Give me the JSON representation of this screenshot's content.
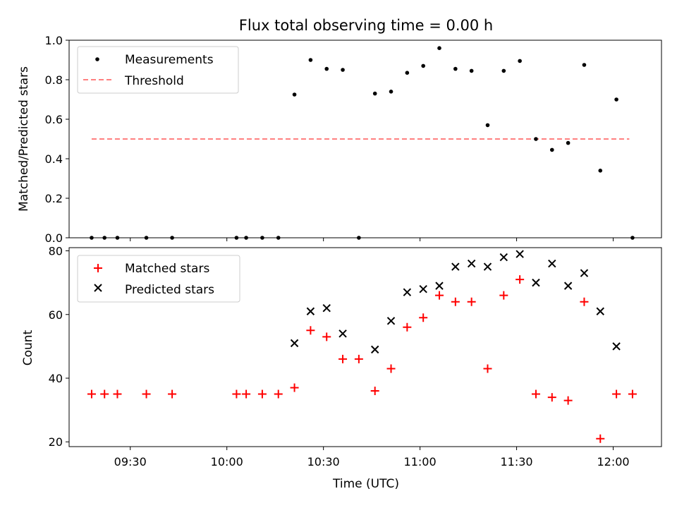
{
  "chart_data": [
    {
      "type": "scatter",
      "title": "Flux total observing time = 0.00 h",
      "ylabel": "Matched/Predicted stars",
      "ylim": [
        0,
        1.0
      ],
      "yticks": [
        "0.0",
        "0.2",
        "0.4",
        "0.6",
        "0.8",
        "1.0"
      ],
      "xlim": [
        "09:11",
        "12:15"
      ],
      "legend_position": "upper-left",
      "series": [
        {
          "name": "Measurements",
          "color": "#000000",
          "marker": "dot",
          "x": [
            "09:18",
            "09:22",
            "09:26",
            "09:35",
            "09:43",
            "10:03",
            "10:06",
            "10:11",
            "10:16",
            "10:21",
            "10:26",
            "10:31",
            "10:36",
            "10:41",
            "10:46",
            "10:51",
            "10:56",
            "11:01",
            "11:06",
            "11:11",
            "11:16",
            "11:21",
            "11:26",
            "11:31",
            "11:36",
            "11:41",
            "11:46",
            "11:51",
            "11:56",
            "12:01",
            "12:06"
          ],
          "y": [
            0,
            0,
            0,
            0,
            0,
            0,
            0,
            0,
            0,
            0.725,
            0.9,
            0.855,
            0.85,
            0,
            0.73,
            0.74,
            0.835,
            0.87,
            0.96,
            0.855,
            0.845,
            0.57,
            0.845,
            0.895,
            0.5,
            0.445,
            0.48,
            0.875,
            0.34,
            0.7,
            0
          ]
        }
      ],
      "threshold": {
        "name": "Threshold",
        "color": "#ff8080",
        "value": 0.5,
        "x": [
          "09:18",
          "12:05"
        ]
      }
    },
    {
      "type": "scatter",
      "ylabel": "Count",
      "xlabel": "Time (UTC)",
      "ylim": [
        18.5,
        81
      ],
      "yticks": [
        "20",
        "40",
        "60",
        "80"
      ],
      "xticks": [
        "09:30",
        "10:00",
        "10:30",
        "11:00",
        "11:30",
        "12:00"
      ],
      "legend_position": "upper-left",
      "series": [
        {
          "name": "Matched stars",
          "color": "#ff0000",
          "marker": "plus",
          "x": [
            "09:18",
            "09:22",
            "09:26",
            "09:35",
            "09:43",
            "10:03",
            "10:06",
            "10:11",
            "10:16",
            "10:21",
            "10:26",
            "10:31",
            "10:36",
            "10:41",
            "10:46",
            "10:51",
            "10:56",
            "11:01",
            "11:06",
            "11:11",
            "11:16",
            "11:21",
            "11:26",
            "11:31",
            "11:36",
            "11:41",
            "11:46",
            "11:51",
            "11:56",
            "12:01",
            "12:06"
          ],
          "y": [
            35,
            35,
            35,
            35,
            35,
            35,
            35,
            35,
            35,
            37,
            55,
            53,
            46,
            46,
            36,
            43,
            56,
            59,
            66,
            64,
            64,
            43,
            66,
            71,
            35,
            34,
            33,
            64,
            21,
            35,
            35
          ]
        },
        {
          "name": "Predicted stars",
          "color": "#000000",
          "marker": "x",
          "x": [
            "10:21",
            "10:26",
            "10:31",
            "10:36",
            "10:46",
            "10:51",
            "10:56",
            "11:01",
            "11:06",
            "11:11",
            "11:16",
            "11:21",
            "11:26",
            "11:31",
            "11:36",
            "11:41",
            "11:46",
            "11:51",
            "11:56",
            "12:01"
          ],
          "y": [
            51,
            61,
            62,
            54,
            49,
            58,
            67,
            68,
            69,
            75,
            76,
            75,
            78,
            79,
            70,
            76,
            69,
            73,
            61,
            50
          ]
        }
      ]
    }
  ]
}
